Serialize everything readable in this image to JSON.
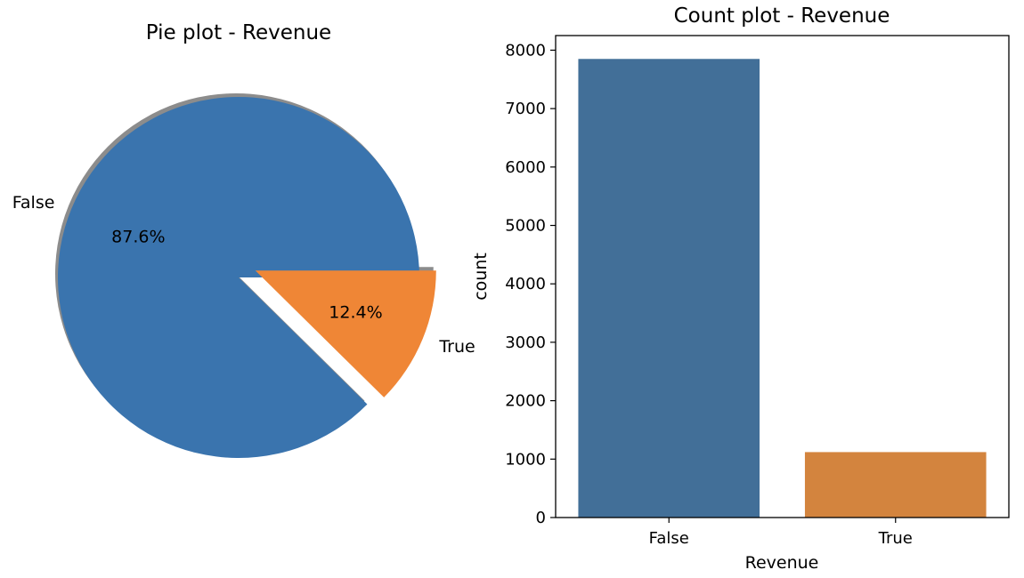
{
  "chart_data": [
    {
      "type": "pie",
      "title": "Pie plot - Revenue",
      "labels": [
        "False",
        "True"
      ],
      "values": [
        87.6,
        12.4
      ],
      "autopct_labels": [
        "87.6%",
        "12.4%"
      ],
      "explode": [
        0,
        0.1
      ],
      "shadow": true,
      "colors": [
        "#3a74ae",
        "#ef8636"
      ]
    },
    {
      "type": "bar",
      "title": "Count plot - Revenue",
      "categories": [
        "False",
        "True"
      ],
      "values": [
        7850,
        1120
      ],
      "xlabel": "Revenue",
      "ylabel": "count",
      "ylim": [
        0,
        8250
      ],
      "yticks": [
        0,
        1000,
        2000,
        3000,
        4000,
        5000,
        6000,
        7000,
        8000
      ],
      "colors": [
        "#426f98",
        "#d3843e"
      ],
      "grid": false
    }
  ]
}
